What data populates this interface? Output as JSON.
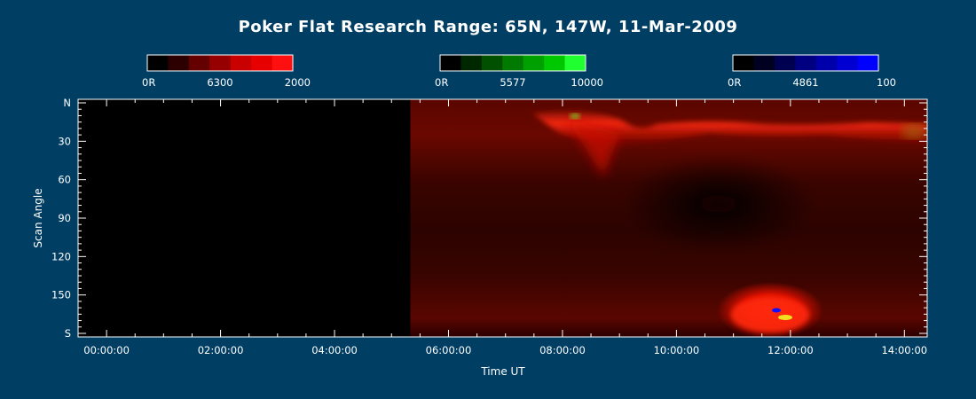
{
  "title": "Poker Flat Research Range: 65N, 147W, 11-Mar-2009",
  "colorbars": [
    {
      "labels": [
        "0R",
        "6300",
        "2000"
      ],
      "colors": [
        "#000000",
        "#2c0000",
        "#640000",
        "#960000",
        "#c80000",
        "#e60000",
        "#ff1010"
      ]
    },
    {
      "labels": [
        "0R",
        "5577",
        "10000"
      ],
      "colors": [
        "#000000",
        "#002800",
        "#005000",
        "#007a00",
        "#00a000",
        "#00c800",
        "#20ff30"
      ]
    },
    {
      "labels": [
        "0R",
        "4861",
        "100"
      ],
      "colors": [
        "#000000",
        "#000020",
        "#000050",
        "#000080",
        "#0000aa",
        "#0000d2",
        "#0000ff"
      ]
    }
  ],
  "chart_data": {
    "type": "heatmap",
    "title": "Poker Flat Research Range: 65N, 147W, 11-Mar-2009",
    "xlabel": "Time UT",
    "ylabel": "Scan Angle",
    "x_ticks": [
      "00:00:00",
      "02:00:00",
      "04:00:00",
      "06:00:00",
      "08:00:00",
      "10:00:00",
      "12:00:00",
      "14:00:00"
    ],
    "y_ticks": [
      "N",
      "30",
      "60",
      "90",
      "120",
      "150",
      "S"
    ],
    "x_range_hours": [
      -0.5,
      14.4
    ],
    "y_range_deg": [
      0,
      180
    ],
    "data_start_hour": 5.33,
    "channels": [
      {
        "wavelength": "6300",
        "range": [
          0,
          2000
        ],
        "unit": "R",
        "color": "red"
      },
      {
        "wavelength": "5577",
        "range": [
          0,
          10000
        ],
        "unit": "R",
        "color": "green"
      },
      {
        "wavelength": "4861",
        "range": [
          0,
          100
        ],
        "unit": "R",
        "color": "blue"
      }
    ]
  }
}
